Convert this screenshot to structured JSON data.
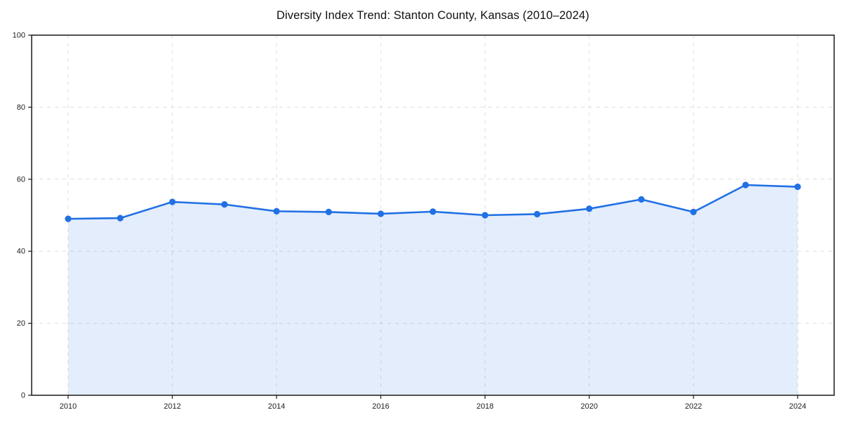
{
  "chart_data": {
    "type": "area",
    "title": "Diversity Index Trend: Stanton County, Kansas (2010–2024)",
    "xlabel": "",
    "ylabel": "",
    "x": [
      2010,
      2011,
      2012,
      2013,
      2014,
      2015,
      2016,
      2017,
      2018,
      2019,
      2020,
      2021,
      2022,
      2023,
      2024
    ],
    "values": [
      49.0,
      49.2,
      53.7,
      53.0,
      51.1,
      50.9,
      50.4,
      51.0,
      50.0,
      50.3,
      51.8,
      54.4,
      50.9,
      58.4,
      57.9
    ],
    "xlim": [
      2009.3,
      2024.7
    ],
    "ylim": [
      0,
      100
    ],
    "xticks": [
      2010,
      2012,
      2014,
      2016,
      2018,
      2020,
      2022,
      2024
    ],
    "yticks": [
      0,
      20,
      40,
      60,
      80,
      100
    ],
    "grid": true,
    "grid_style": "dashed",
    "legend": false,
    "marker": "circle",
    "style": {
      "line_color": "#2170e4",
      "marker_color": "#2170e4",
      "fill_color": "#2170e420",
      "grid_color": "#dedede",
      "frame_color": "#1a1a1a",
      "tick_label_color": "#222222",
      "title_color": "#111111",
      "background": "#ffffff"
    }
  }
}
